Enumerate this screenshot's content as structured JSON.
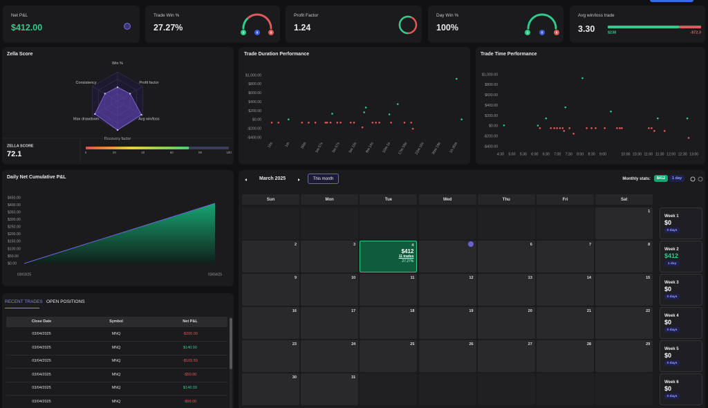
{
  "stats": {
    "net_pl": {
      "label": "Net P&L",
      "value": "$412.00"
    },
    "trade_win": {
      "label": "Trade Win %",
      "value": "27.27%",
      "wins": 3,
      "breakeven": 0,
      "losses": 8
    },
    "profit_factor": {
      "label": "Profit Factor",
      "value": 1.24
    },
    "day_win": {
      "label": "Day Win %",
      "value": "100%",
      "wins": 1,
      "breakeven": 0,
      "losses": 0
    },
    "avg_win_loss": {
      "label": "Avg win/loss trade",
      "value": "3.30",
      "avg_win": {
        "value": 238,
        "label": "$238"
      },
      "avg_loss": {
        "value": -72.3,
        "label": "-$72.3"
      }
    }
  },
  "zella": {
    "title": "Zella Score",
    "axes": [
      "Win %",
      "Profit factor",
      "Avg win/loss",
      "Recovery factor",
      "Max drawdown",
      "Consistency"
    ],
    "values": [
      47,
      50,
      95,
      100,
      90,
      50
    ],
    "score_label": "ZELLA SCORE",
    "score": 72.1,
    "ticks": [
      0,
      20,
      40,
      60,
      80,
      100
    ]
  },
  "duration_chart": {
    "type": "scatter",
    "title": "Trade Duration Performance",
    "xlim": [
      -0.3,
      11.5
    ],
    "xticks": [
      {
        "value": 0,
        "label": "10s"
      },
      {
        "value": 1,
        "label": "1m"
      },
      {
        "value": 2,
        "label": "30m"
      },
      {
        "value": 3,
        "label": "1m 57s"
      },
      {
        "value": 4,
        "label": "3m 57s"
      },
      {
        "value": 5,
        "label": "5m 10s"
      },
      {
        "value": 6,
        "label": "8m 14s"
      },
      {
        "value": 7,
        "label": "10m 1s"
      },
      {
        "value": 8,
        "label": "17m 59s"
      },
      {
        "value": 9,
        "label": "22m 10s"
      },
      {
        "value": 10,
        "label": "30m 19s"
      },
      {
        "value": 11,
        "label": "1h 30m"
      }
    ],
    "ylim": [
      -400,
      1000
    ],
    "yticks": [
      {
        "value": 1000,
        "label": "$1,000.00"
      },
      {
        "value": 800,
        "label": "$800.00"
      },
      {
        "value": 600,
        "label": "$600.00"
      },
      {
        "value": 400,
        "label": "$400.00"
      },
      {
        "value": 200,
        "label": "$200.00"
      },
      {
        "value": 0,
        "label": "$0.00"
      },
      {
        "value": -200,
        "label": "-$200.00"
      },
      {
        "value": -400,
        "label": "-$400.00"
      }
    ],
    "series": [
      {
        "color": "#2ecc8a",
        "x": [
          1.0,
          3.6,
          5.5,
          5.6,
          7.0,
          7.5,
          11.0,
          11.3
        ],
        "values": [
          10,
          138,
          169,
          277,
          123,
          354,
          923,
          10
        ]
      },
      {
        "color": "#e05a5a",
        "x": [
          0,
          0.4,
          1.8,
          2.2,
          2.6,
          3.2,
          3.3,
          3.5,
          3.9,
          4.1,
          4.7,
          4.9,
          5.4,
          6.0,
          6.2,
          6.4,
          7.1,
          7.9,
          8.3,
          8.4
        ],
        "values": [
          -62,
          -62,
          -62,
          -62,
          -62,
          -62,
          -62,
          -62,
          -62,
          -62,
          -62,
          -62,
          -169,
          -62,
          -62,
          -62,
          -62,
          -62,
          -62,
          -200
        ]
      }
    ]
  },
  "time_chart": {
    "type": "scatter",
    "title": "Trade Time Performance",
    "xlim": [
      4.3,
      13.2
    ],
    "xticks": [
      {
        "value": 4.5,
        "label": "4:30"
      },
      {
        "value": 5,
        "label": "5:00"
      },
      {
        "value": 5.5,
        "label": "5:30"
      },
      {
        "value": 6,
        "label": "6:00"
      },
      {
        "value": 6.5,
        "label": "6:30"
      },
      {
        "value": 7,
        "label": "7:00"
      },
      {
        "value": 7.5,
        "label": "7:30"
      },
      {
        "value": 8,
        "label": "8:00"
      },
      {
        "value": 8.5,
        "label": "8:30"
      },
      {
        "value": 9,
        "label": "9:00"
      },
      {
        "value": 10,
        "label": "10:00"
      },
      {
        "value": 10.5,
        "label": "10:30"
      },
      {
        "value": 11,
        "label": "11:00"
      },
      {
        "value": 11.5,
        "label": "11:30"
      },
      {
        "value": 12,
        "label": "12:00"
      },
      {
        "value": 12.5,
        "label": "12:30"
      },
      {
        "value": 13,
        "label": "13:00"
      }
    ],
    "ylim": [
      -400,
      1000
    ],
    "yticks": [
      {
        "value": 1000,
        "label": "$1,000.00"
      },
      {
        "value": 800,
        "label": "$800.00"
      },
      {
        "value": 600,
        "label": "$600.00"
      },
      {
        "value": 400,
        "label": "$400.00"
      },
      {
        "value": 200,
        "label": "$200.00"
      },
      {
        "value": 0,
        "label": "$0.00"
      },
      {
        "value": -200,
        "label": "-$200.00"
      },
      {
        "value": -400,
        "label": "-$400.00"
      }
    ],
    "series": [
      {
        "color": "#2ecc8a",
        "x": [
          4.65,
          6.14,
          6.5,
          7.35,
          8.1,
          9.35,
          11.41,
          12.71
        ],
        "values": [
          14,
          10,
          149,
          365,
          932,
          284,
          149,
          149
        ]
      },
      {
        "color": "#e05a5a",
        "x": [
          6.23,
          6.71,
          6.86,
          6.98,
          7.11,
          7.23,
          7.29,
          7.53,
          7.71,
          8.29,
          8.5,
          8.68,
          9.08,
          9.62,
          9.74,
          9.83,
          11.02,
          11.14,
          11.26,
          11.71,
          12.77
        ],
        "values": [
          -41,
          -41,
          -41,
          -41,
          -41,
          -41,
          -95,
          -41,
          -149,
          -41,
          -41,
          -41,
          -41,
          -41,
          -41,
          -41,
          -41,
          -41,
          -95,
          -95,
          -230
        ]
      }
    ]
  },
  "cumulative_chart": {
    "type": "area",
    "title": "Daily Net Cumulative P&L",
    "categories": [
      "03/03/25",
      "03/04/25"
    ],
    "values": [
      0,
      412
    ],
    "color": "#17a673",
    "line_color": "#6f63d9",
    "ylim": [
      0,
      450
    ],
    "yticks": [
      {
        "value": 450,
        "label": "$450.00"
      },
      {
        "value": 400,
        "label": "$400.00"
      },
      {
        "value": 350,
        "label": "$350.00"
      },
      {
        "value": 300,
        "label": "$300.00"
      },
      {
        "value": 250,
        "label": "$250.00"
      },
      {
        "value": 200,
        "label": "$200.00"
      },
      {
        "value": 150,
        "label": "$150.00"
      },
      {
        "value": 100,
        "label": "$100.00"
      },
      {
        "value": 50,
        "label": "$50.00"
      },
      {
        "value": 0,
        "label": "$0.00"
      }
    ]
  },
  "calendar": {
    "month": "March 2025",
    "button": "This month",
    "monthly_label": "Monthly stats:",
    "monthly_pnl": "$412",
    "monthly_days": "1 day",
    "weekdays": [
      "Sun",
      "Mon",
      "Tue",
      "Wed",
      "Thu",
      "Fri",
      "Sat"
    ],
    "rows": [
      [
        null,
        null,
        null,
        null,
        null,
        null,
        1
      ],
      [
        2,
        3,
        {
          "day": 4,
          "pnl": "$412",
          "trades": "11 trades",
          "win_rate": "27.27%"
        },
        5,
        6,
        7,
        8
      ],
      [
        9,
        10,
        11,
        12,
        13,
        14,
        15
      ],
      [
        16,
        17,
        18,
        19,
        20,
        21,
        22
      ],
      [
        23,
        24,
        25,
        26,
        27,
        28,
        29
      ],
      [
        30,
        31,
        null,
        null,
        null,
        null,
        null
      ]
    ],
    "weeks": [
      {
        "label": "Week 1",
        "pnl": "$0",
        "days": "0 days"
      },
      {
        "label": "Week 2",
        "pnl": "$412",
        "days": "1 day",
        "color": "#2ecc8a"
      },
      {
        "label": "Week 3",
        "pnl": "$0",
        "days": "0 days"
      },
      {
        "label": "Week 4",
        "pnl": "$0",
        "days": "0 days"
      },
      {
        "label": "Week 5",
        "pnl": "$0",
        "days": "0 days"
      },
      {
        "label": "Week 6",
        "pnl": "$0",
        "days": "0 days"
      }
    ]
  },
  "trades": {
    "tabs": [
      "RECENT TRADES",
      "OPEN POSITIONS"
    ],
    "columns": [
      "Close Date",
      "Symbol",
      "Net P&L"
    ],
    "rows": [
      [
        "03/04/2025",
        "MNQ",
        "-$200.00"
      ],
      [
        "03/04/2025",
        "MNQ",
        "$140.00"
      ],
      [
        "03/04/2025",
        "MNQ",
        "-$103.50"
      ],
      [
        "03/04/2025",
        "MNQ",
        "-$50.00"
      ],
      [
        "03/04/2025",
        "MNQ",
        "$140.00"
      ],
      [
        "03/04/2025",
        "MNQ",
        "-$99.00"
      ]
    ]
  }
}
